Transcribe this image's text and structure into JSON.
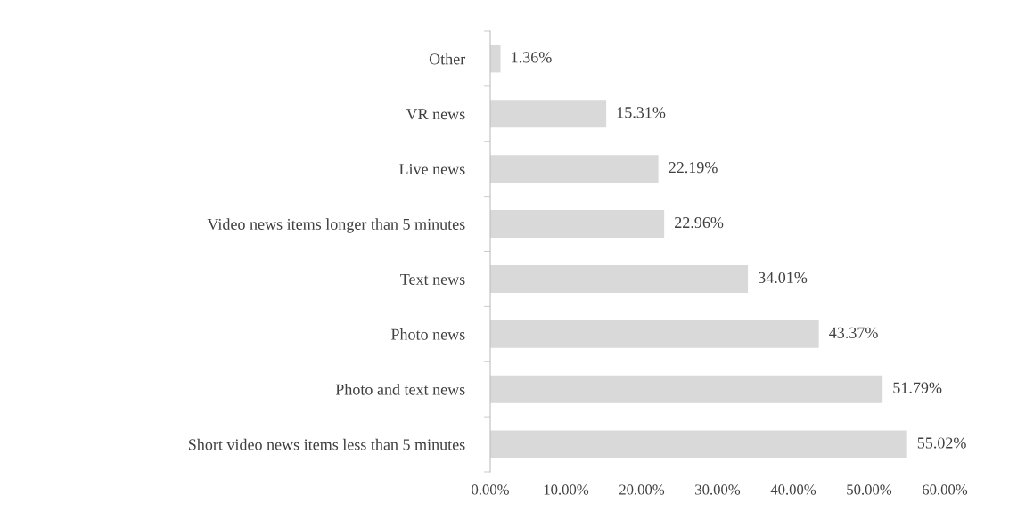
{
  "chart_data": {
    "type": "bar",
    "orientation": "horizontal",
    "categories": [
      "Other",
      "VR news",
      "Live news",
      "Video news items longer than 5 minutes",
      "Text news",
      "Photo news",
      "Photo and text news",
      "Short video news items less than 5 minutes"
    ],
    "values": [
      1.36,
      15.31,
      22.19,
      22.96,
      34.01,
      43.37,
      51.79,
      55.02
    ],
    "value_labels": [
      "1.36%",
      "15.31%",
      "22.19%",
      "22.96%",
      "34.01%",
      "43.37%",
      "51.79%",
      "55.02%"
    ],
    "color": "#d9d9d9",
    "xlim": [
      0,
      60
    ],
    "xticks": [
      {
        "value": 0,
        "label": "0.00%"
      },
      {
        "value": 10,
        "label": "10.00%"
      },
      {
        "value": 20,
        "label": "20.00%"
      },
      {
        "value": 30,
        "label": "30.00%"
      },
      {
        "value": 40,
        "label": "40.00%"
      },
      {
        "value": 50,
        "label": "50.00%"
      },
      {
        "value": 60,
        "label": "60.00%"
      }
    ],
    "grid": false,
    "legend": false
  }
}
